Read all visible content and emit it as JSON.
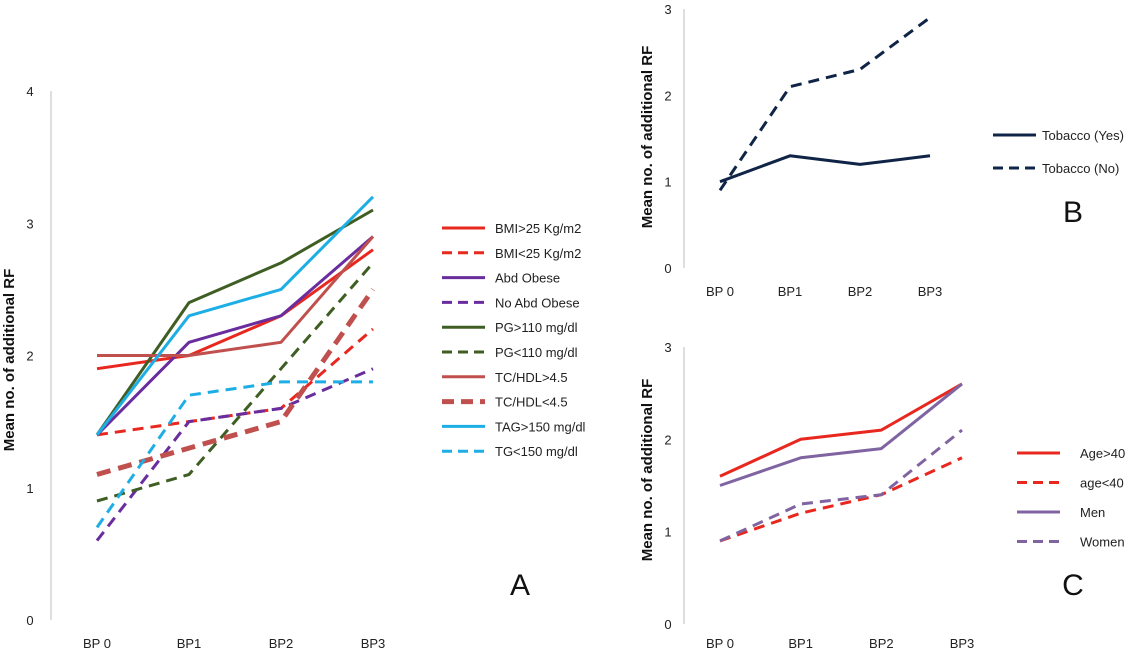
{
  "chart_data": [
    {
      "type": "line",
      "panel_label": "A",
      "categories": [
        "BP 0",
        "BP1",
        "BP2",
        "BP3"
      ],
      "ylabel": "Mean no. of additional RF",
      "ylim": [
        0,
        4
      ],
      "yticks": [
        "0",
        "1",
        "2",
        "3",
        "4"
      ],
      "legend_position": "right",
      "series": [
        {
          "name": "BMI>25 Kg/m2",
          "values": [
            1.9,
            2.0,
            2.3,
            2.8
          ],
          "color": "#e8281f",
          "dash": "solid",
          "weight": "normal"
        },
        {
          "name": "BMI<25 Kg/m2",
          "values": [
            1.4,
            1.5,
            1.6,
            2.2
          ],
          "color": "#e8281f",
          "dash": "dashed",
          "weight": "normal"
        },
        {
          "name": "Abd Obese",
          "values": [
            1.4,
            2.1,
            2.3,
            2.9
          ],
          "color": "#6a2d9e",
          "dash": "solid",
          "weight": "normal"
        },
        {
          "name": "No Abd Obese",
          "values": [
            0.6,
            1.5,
            1.6,
            1.9
          ],
          "color": "#6a2d9e",
          "dash": "dashed",
          "weight": "normal"
        },
        {
          "name": "PG>110 mg/dl",
          "values": [
            1.4,
            2.4,
            2.7,
            3.1
          ],
          "color": "#3f5e23",
          "dash": "solid",
          "weight": "normal"
        },
        {
          "name": "PG<110 mg/dl",
          "values": [
            0.9,
            1.1,
            1.9,
            2.7
          ],
          "color": "#3f5e23",
          "dash": "dashed",
          "weight": "normal"
        },
        {
          "name": "TC/HDL>4.5",
          "values": [
            2.0,
            2.0,
            2.1,
            2.9
          ],
          "color": "#c0504d",
          "dash": "solid",
          "weight": "normal"
        },
        {
          "name": "TC/HDL<4.5",
          "values": [
            1.1,
            1.3,
            1.5,
            2.5
          ],
          "color": "#c0504d",
          "dash": "dashed",
          "weight": "thick"
        },
        {
          "name": "TAG>150 mg/dl",
          "values": [
            1.4,
            2.3,
            2.5,
            3.2
          ],
          "color": "#1eaee6",
          "dash": "solid",
          "weight": "normal"
        },
        {
          "name": "TG<150 mg/dl",
          "values": [
            0.7,
            1.7,
            1.8,
            1.8
          ],
          "color": "#1eaee6",
          "dash": "dashed",
          "weight": "normal"
        }
      ]
    },
    {
      "type": "line",
      "panel_label": "B",
      "categories": [
        "BP 0",
        "BP1",
        "BP2",
        "BP3"
      ],
      "ylabel": "Mean no. of additional RF",
      "ylim": [
        0,
        3
      ],
      "yticks": [
        "0",
        "1",
        "2",
        "3"
      ],
      "legend_position": "right",
      "series": [
        {
          "name": "Tobacco (Yes)",
          "values": [
            1.0,
            1.3,
            1.2,
            1.3
          ],
          "color": "#0f2446",
          "dash": "solid",
          "weight": "normal"
        },
        {
          "name": "Tobacco (No)",
          "values": [
            0.9,
            2.1,
            2.3,
            2.9
          ],
          "color": "#0f2446",
          "dash": "dashed",
          "weight": "normal"
        }
      ]
    },
    {
      "type": "line",
      "panel_label": "C",
      "categories": [
        "BP 0",
        "BP1",
        "BP2",
        "BP3"
      ],
      "ylabel": "Mean no. of additional RF",
      "ylim": [
        0,
        3
      ],
      "yticks": [
        "0",
        "1",
        "2",
        "3"
      ],
      "legend_position": "right",
      "series": [
        {
          "name": "Age>40",
          "values": [
            1.6,
            2.0,
            2.1,
            2.6
          ],
          "color": "#e8281f",
          "dash": "solid",
          "weight": "normal"
        },
        {
          "name": "age<40",
          "values": [
            0.9,
            1.2,
            1.4,
            1.8
          ],
          "color": "#e8281f",
          "dash": "dashed",
          "weight": "normal"
        },
        {
          "name": "Men",
          "values": [
            1.5,
            1.8,
            1.9,
            2.6
          ],
          "color": "#8064a2",
          "dash": "solid",
          "weight": "normal"
        },
        {
          "name": "Women",
          "values": [
            0.9,
            1.3,
            1.4,
            2.1
          ],
          "color": "#8064a2",
          "dash": "dashed",
          "weight": "normal"
        }
      ]
    }
  ]
}
